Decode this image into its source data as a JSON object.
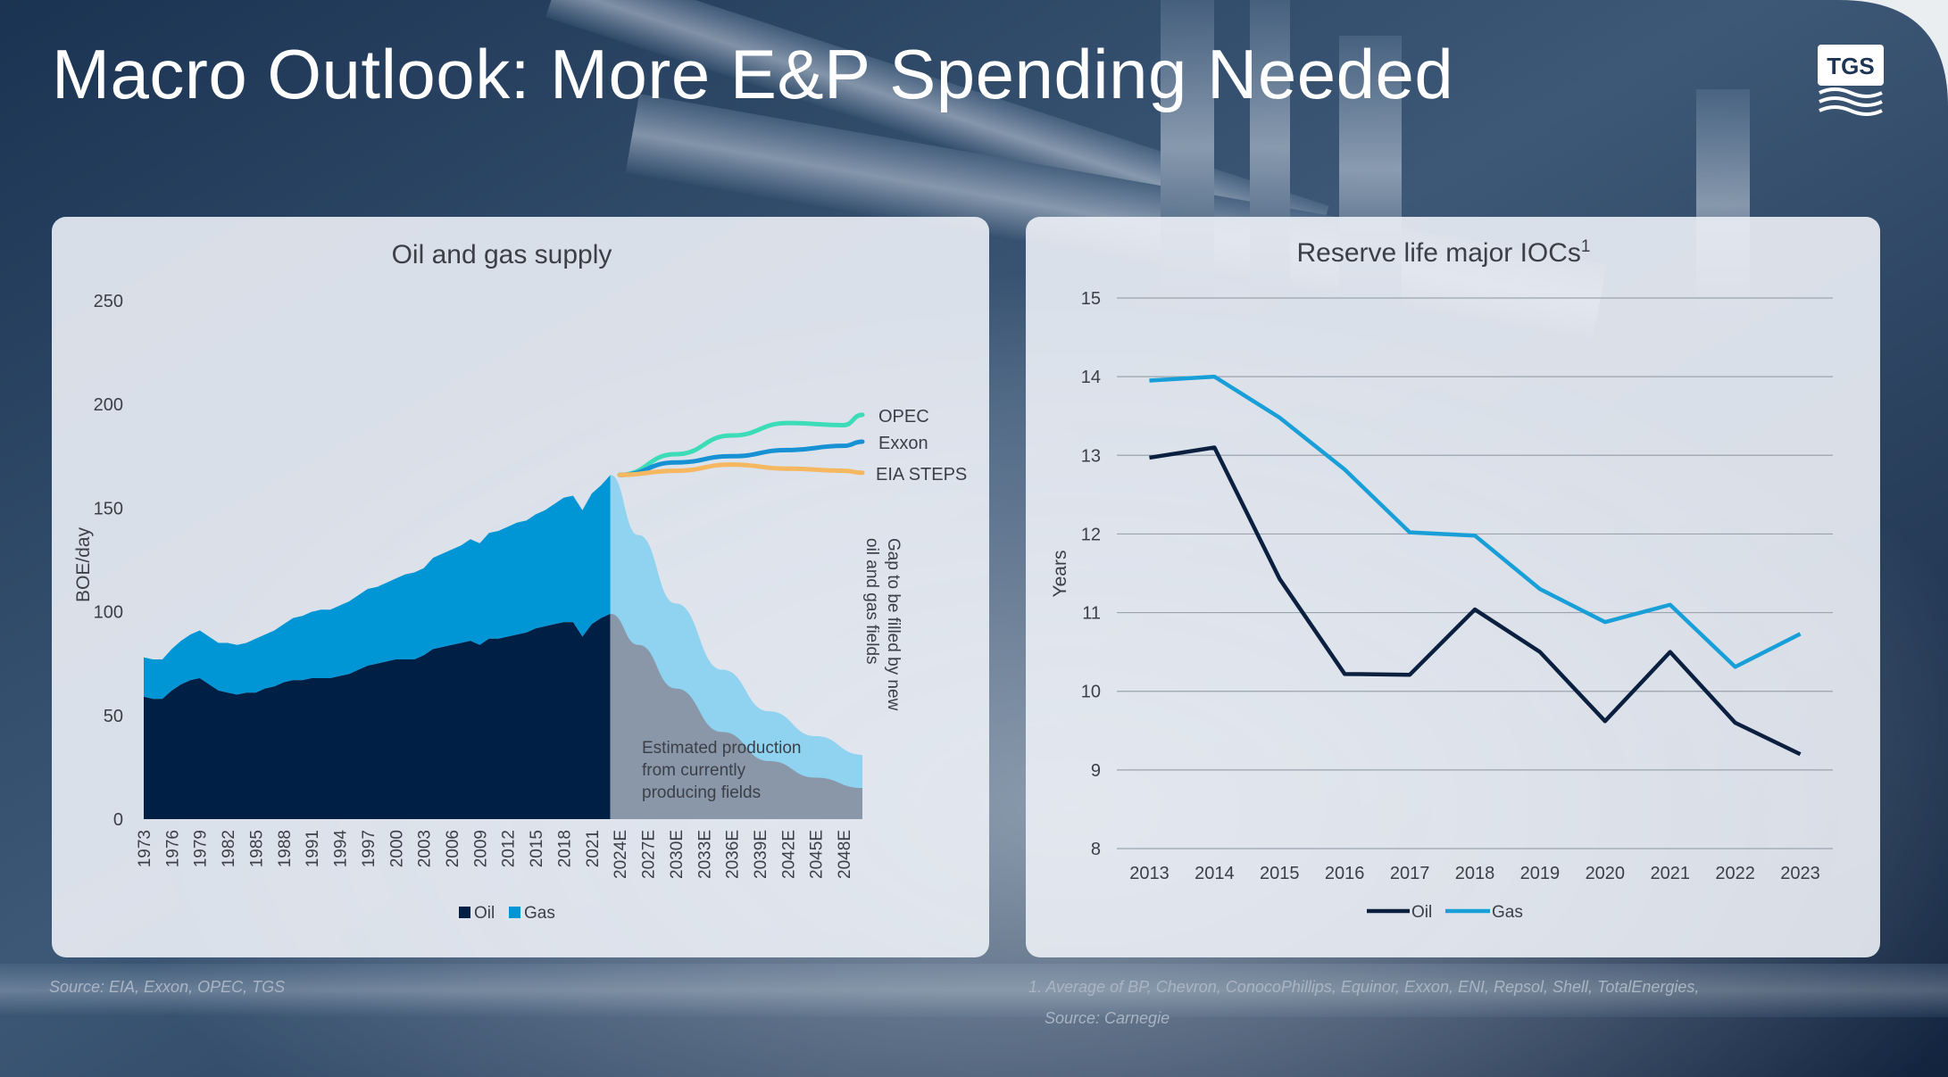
{
  "slide": {
    "title": "Macro Outlook: More E&P Spending Needed",
    "logo_text": "TGS",
    "source_left": "Source: EIA, Exxon, OPEC, TGS",
    "footnote_right_line1": "1. Average of BP, Chevron, ConocoPhillips, Equinor, Exxon, ENI, Repsol, Shell, TotalEnergies,",
    "footnote_right_line2": "Source: Carnegie"
  },
  "colors": {
    "oil": "#001f45",
    "gas": "#0096d6",
    "decline_gas": "#8fd3f0",
    "decline_oil": "#8a97a8",
    "opec": "#3ddcb8",
    "exxon": "#1691d4",
    "eia": "#f5b860",
    "reserve_oil": "#0b1f3f",
    "reserve_gas": "#199fd8"
  },
  "chart_data": [
    {
      "type": "area",
      "title": "Oil and gas supply",
      "ylabel": "BOE/day",
      "ylim": [
        0,
        250
      ],
      "yticks": [
        0,
        50,
        100,
        150,
        200,
        250
      ],
      "x_tick_labels": [
        "1973",
        "1976",
        "1979",
        "1982",
        "1985",
        "1988",
        "1991",
        "1994",
        "1997",
        "2000",
        "2003",
        "2006",
        "2009",
        "2012",
        "2015",
        "2018",
        "2021",
        "2024E",
        "2027E",
        "2030E",
        "2033E",
        "2036E",
        "2039E",
        "2042E",
        "2045E",
        "2048E"
      ],
      "legend": [
        "Oil",
        "Gas"
      ],
      "x_start": 1973,
      "x_end": 2050,
      "historical_years": [
        1973,
        1974,
        1975,
        1976,
        1977,
        1978,
        1979,
        1980,
        1981,
        1982,
        1983,
        1984,
        1985,
        1986,
        1987,
        1988,
        1989,
        1990,
        1991,
        1992,
        1993,
        1994,
        1995,
        1996,
        1997,
        1998,
        1999,
        2000,
        2001,
        2002,
        2003,
        2004,
        2005,
        2006,
        2007,
        2008,
        2009,
        2010,
        2011,
        2012,
        2013,
        2014,
        2015,
        2016,
        2017,
        2018,
        2019,
        2020,
        2021,
        2022,
        2023
      ],
      "series": [
        {
          "name": "Oil",
          "values": [
            59,
            58,
            58,
            62,
            65,
            67,
            68,
            65,
            62,
            61,
            60,
            61,
            61,
            63,
            64,
            66,
            67,
            67,
            68,
            68,
            68,
            69,
            70,
            72,
            74,
            75,
            76,
            77,
            77,
            77,
            79,
            82,
            83,
            84,
            85,
            86,
            84,
            87,
            87,
            88,
            89,
            90,
            92,
            93,
            94,
            95,
            95,
            88,
            94,
            97,
            99
          ]
        },
        {
          "name": "Gas",
          "values": [
            19,
            19,
            19,
            20,
            21,
            22,
            23,
            23,
            23,
            24,
            24,
            24,
            26,
            26,
            27,
            28,
            30,
            31,
            32,
            33,
            33,
            34,
            35,
            36,
            37,
            37,
            38,
            39,
            41,
            42,
            42,
            44,
            45,
            46,
            47,
            49,
            49,
            51,
            52,
            53,
            54,
            54,
            55,
            56,
            58,
            60,
            61,
            61,
            63,
            64,
            67
          ]
        }
      ],
      "projection_years": [
        2024,
        2030,
        2036,
        2042,
        2048,
        2050
      ],
      "scenarios": [
        {
          "name": "OPEC",
          "values": [
            166,
            176,
            185,
            191,
            190,
            195
          ]
        },
        {
          "name": "Exxon",
          "values": [
            166,
            172,
            175,
            178,
            180,
            182
          ]
        },
        {
          "name": "EIA STEPS",
          "values": [
            166,
            168,
            171,
            169,
            168,
            167
          ]
        }
      ],
      "decline_years": [
        2023,
        2026,
        2030,
        2035,
        2040,
        2045,
        2050
      ],
      "decline_total": [
        166,
        137,
        104,
        72,
        52,
        40,
        31
      ],
      "decline_oil": [
        99,
        84,
        63,
        42,
        28,
        20,
        15
      ],
      "annotation_decline": [
        "Estimated production",
        "from currently",
        "producing fields"
      ],
      "annotation_gap": [
        "Gap to be filled by new",
        "oil and gas fields"
      ]
    },
    {
      "type": "line",
      "title": "Reserve life major IOCs",
      "title_superscript": "1",
      "ylabel": "Years",
      "ylim": [
        8,
        15
      ],
      "yticks": [
        8,
        9,
        10,
        11,
        12,
        13,
        14,
        15
      ],
      "categories": [
        "2013",
        "2014",
        "2015",
        "2016",
        "2017",
        "2018",
        "2019",
        "2020",
        "2021",
        "2022",
        "2023"
      ],
      "series": [
        {
          "name": "Oil",
          "values": [
            12.97,
            13.1,
            11.43,
            10.22,
            10.21,
            11.04,
            10.5,
            9.62,
            10.5,
            9.6,
            9.2
          ]
        },
        {
          "name": "Gas",
          "values": [
            13.95,
            14.0,
            13.48,
            12.82,
            12.02,
            11.98,
            11.3,
            10.88,
            11.1,
            10.31,
            10.73
          ]
        }
      ],
      "legend": [
        "Oil",
        "Gas"
      ],
      "grid": true
    }
  ]
}
